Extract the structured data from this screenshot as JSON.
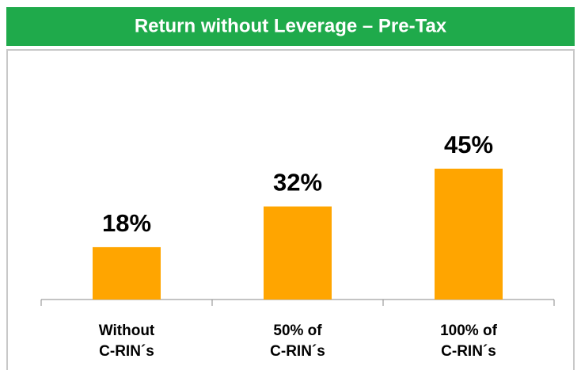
{
  "chart_data": {
    "type": "bar",
    "title": "Return without Leverage – Pre-Tax",
    "categories": [
      "Without\nC-RIN´s",
      "50% of\nC-RIN´s",
      "100% of\nC-RIN´s"
    ],
    "values": [
      18,
      32,
      45
    ],
    "value_labels": [
      "18%",
      "32%",
      "45%"
    ],
    "color": "#ffa500",
    "header_color": "#1faa4b"
  }
}
